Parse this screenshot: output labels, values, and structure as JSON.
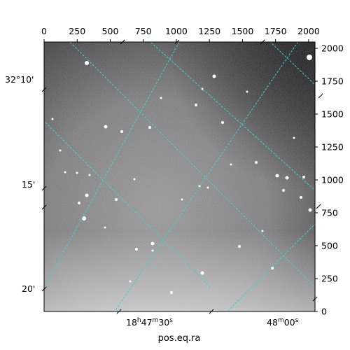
{
  "chart_data": {
    "type": "heatmap",
    "image": "grayscale astronomical sky image with stars, WCS coordinate grid overlay",
    "xlabel": "pos.eq.ra",
    "ylabel": "",
    "pixel_axes": {
      "x_ticks": [
        0,
        250,
        500,
        750,
        1000,
        1250,
        1500,
        1750,
        2000
      ],
      "y_ticks": [
        0,
        250,
        500,
        750,
        1000,
        1250,
        1500,
        1750,
        2000
      ],
      "xlim": [
        0,
        2048
      ],
      "ylim": [
        0,
        2048
      ]
    },
    "wcs_ticks": {
      "ra": [
        {
          "label_prefix": "18",
          "h": "h",
          "mid": "47",
          "m": "m",
          "sec": "30",
          "s": "s"
        },
        {
          "label_prefix": "",
          "h": "",
          "mid": "48",
          "m": "m",
          "sec": "00",
          "s": "s"
        }
      ],
      "dec": [
        "32°10'",
        "15'",
        "20'"
      ]
    },
    "grid_color": "#33d6d6",
    "colormap": "gray"
  }
}
